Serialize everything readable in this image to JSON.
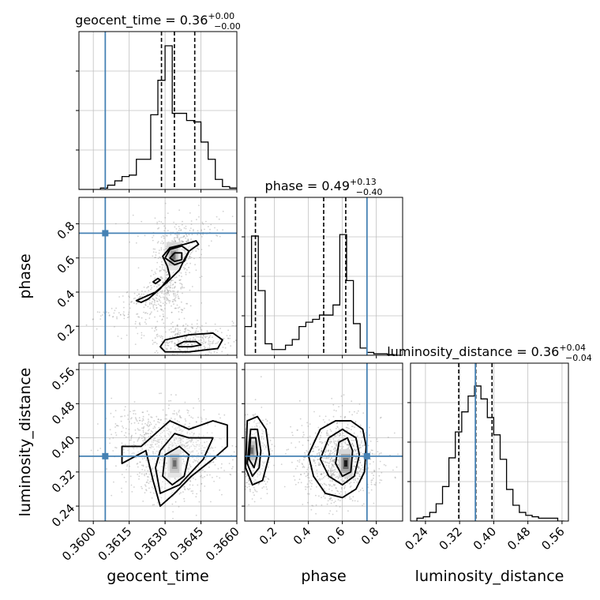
{
  "figure": {
    "colors": {
      "truth": "#4682b4",
      "hist": "#000000",
      "grid": "#c0c0c0",
      "scatter": "#9a9a9a"
    }
  },
  "chart_data": [
    {
      "panel": "geocent_time-hist",
      "type": "bar",
      "style": "step",
      "title_main": "geocent_time = 0.36",
      "title_sup": "+0.00",
      "title_sub": "−0.00",
      "xlim": [
        0.3594,
        0.366
      ],
      "ylim": [
        0,
        1
      ],
      "bins": [
        [
          0.3594,
          0
        ],
        [
          0.3597,
          0
        ],
        [
          0.36,
          0
        ],
        [
          0.3603,
          0.01
        ],
        [
          0.3606,
          0.03
        ],
        [
          0.3609,
          0.06
        ],
        [
          0.3612,
          0.09
        ],
        [
          0.3615,
          0.1
        ],
        [
          0.3618,
          0.21
        ],
        [
          0.3621,
          0.21
        ],
        [
          0.3624,
          0.52
        ],
        [
          0.3627,
          0.76
        ],
        [
          0.363,
          1.0
        ],
        [
          0.3633,
          0.53
        ],
        [
          0.3636,
          0.53
        ],
        [
          0.3639,
          0.48
        ],
        [
          0.3642,
          0.47
        ],
        [
          0.3645,
          0.33
        ],
        [
          0.3648,
          0.21
        ],
        [
          0.3651,
          0.07
        ],
        [
          0.3654,
          0.02
        ],
        [
          0.3657,
          0.01
        ]
      ],
      "quantiles": [
        0.36285,
        0.36339,
        0.36424
      ],
      "truth": 0.3605,
      "grid": true
    },
    {
      "panel": "phase-hist",
      "type": "bar",
      "style": "step",
      "title_main": "phase = 0.49",
      "title_sup": "+0.13",
      "title_sub": "−0.40",
      "xlim": [
        0.025,
        0.955
      ],
      "ylim": [
        0,
        1
      ],
      "bins": [
        [
          0.025,
          0.2
        ],
        [
          0.065,
          0.83
        ],
        [
          0.105,
          0.45
        ],
        [
          0.145,
          0.08
        ],
        [
          0.185,
          0.04
        ],
        [
          0.225,
          0.04
        ],
        [
          0.265,
          0.07
        ],
        [
          0.305,
          0.11
        ],
        [
          0.345,
          0.2
        ],
        [
          0.385,
          0.23
        ],
        [
          0.425,
          0.25
        ],
        [
          0.465,
          0.28
        ],
        [
          0.505,
          0.28
        ],
        [
          0.545,
          0.35
        ],
        [
          0.585,
          0.84
        ],
        [
          0.625,
          0.52
        ],
        [
          0.665,
          0.22
        ],
        [
          0.705,
          0.05
        ],
        [
          0.745,
          0.02
        ],
        [
          0.785,
          0.01
        ],
        [
          0.825,
          0.01
        ],
        [
          0.865,
          0.005
        ],
        [
          0.905,
          0
        ]
      ],
      "quantiles": [
        0.088,
        0.49,
        0.62
      ],
      "truth": 0.745,
      "grid": true
    },
    {
      "panel": "luminosity_distance-hist",
      "type": "bar",
      "style": "step",
      "title_main": "luminosity_distance = 0.36",
      "title_sup": "+0.04",
      "title_sub": "−0.04",
      "xlim": [
        0.205,
        0.575
      ],
      "ylim": [
        0,
        1
      ],
      "bins": [
        [
          0.205,
          0
        ],
        [
          0.22,
          0.02
        ],
        [
          0.235,
          0.03
        ],
        [
          0.25,
          0.06
        ],
        [
          0.265,
          0.12
        ],
        [
          0.28,
          0.24
        ],
        [
          0.295,
          0.44
        ],
        [
          0.31,
          0.62
        ],
        [
          0.325,
          0.76
        ],
        [
          0.34,
          0.87
        ],
        [
          0.355,
          0.94
        ],
        [
          0.37,
          0.85
        ],
        [
          0.385,
          0.72
        ],
        [
          0.4,
          0.6
        ],
        [
          0.415,
          0.43
        ],
        [
          0.43,
          0.22
        ],
        [
          0.445,
          0.11
        ],
        [
          0.46,
          0.06
        ],
        [
          0.475,
          0.04
        ],
        [
          0.49,
          0.03
        ],
        [
          0.505,
          0.02
        ],
        [
          0.52,
          0.02
        ],
        [
          0.535,
          0.02
        ],
        [
          0.55,
          0
        ]
      ],
      "quantiles": [
        0.318,
        0.358,
        0.396
      ],
      "truth": 0.357,
      "grid": true
    },
    {
      "panel": "geocent_time-vs-phase",
      "type": "scatter",
      "style": "2d-density-contour",
      "xlim": [
        0.3594,
        0.366
      ],
      "ylim": [
        0.03,
        0.955
      ],
      "yticks": [
        "0.2",
        "0.4",
        "0.6",
        "0.8"
      ],
      "ylabel": "phase",
      "truth": [
        0.3605,
        0.745
      ],
      "scatter_seeds": [
        {
          "x": 0.36357,
          "y": 0.66,
          "sx": 0.0004,
          "sy": 0.06,
          "n": 240
        },
        {
          "x": 0.36315,
          "y": 0.47,
          "sx": 0.00045,
          "sy": 0.09,
          "n": 200
        },
        {
          "x": 0.3625,
          "y": 0.36,
          "sx": 0.0007,
          "sy": 0.04,
          "n": 140
        },
        {
          "x": 0.364,
          "y": 0.12,
          "sx": 0.0009,
          "sy": 0.05,
          "n": 320
        },
        {
          "x": 0.3615,
          "y": 0.26,
          "sx": 0.001,
          "sy": 0.03,
          "n": 80
        },
        {
          "x": 0.3639,
          "y": 0.78,
          "sx": 0.0012,
          "sy": 0.06,
          "n": 90
        }
      ],
      "density_core": [
        [
          0.36335,
          0.61
        ]
      ],
      "contours": [
        [
          [
            0.3623,
            0.36
          ],
          [
            0.3628,
            0.42
          ],
          [
            0.3632,
            0.49
          ],
          [
            0.3631,
            0.55
          ],
          [
            0.3629,
            0.61
          ],
          [
            0.3632,
            0.66
          ],
          [
            0.3638,
            0.68
          ],
          [
            0.3643,
            0.7
          ],
          [
            0.3644,
            0.68
          ],
          [
            0.364,
            0.64
          ],
          [
            0.3638,
            0.59
          ],
          [
            0.3636,
            0.53
          ],
          [
            0.3631,
            0.46
          ],
          [
            0.3626,
            0.4
          ],
          [
            0.3618,
            0.35
          ],
          [
            0.362,
            0.34
          ],
          [
            0.3623,
            0.36
          ]
        ],
        [
          [
            0.363,
            0.6
          ],
          [
            0.3632,
            0.65
          ],
          [
            0.3637,
            0.67
          ],
          [
            0.364,
            0.64
          ],
          [
            0.3638,
            0.58
          ],
          [
            0.3634,
            0.56
          ],
          [
            0.363,
            0.6
          ]
        ],
        [
          [
            0.3632,
            0.6
          ],
          [
            0.3634,
            0.63
          ],
          [
            0.3637,
            0.63
          ],
          [
            0.3637,
            0.59
          ],
          [
            0.3634,
            0.58
          ],
          [
            0.3632,
            0.6
          ]
        ],
        [
          [
            0.3628,
            0.08
          ],
          [
            0.363,
            0.12
          ],
          [
            0.364,
            0.15
          ],
          [
            0.365,
            0.16
          ],
          [
            0.3654,
            0.12
          ],
          [
            0.3652,
            0.07
          ],
          [
            0.364,
            0.05
          ],
          [
            0.363,
            0.05
          ],
          [
            0.3628,
            0.08
          ]
        ],
        [
          [
            0.3635,
            0.09
          ],
          [
            0.3638,
            0.11
          ],
          [
            0.3643,
            0.11
          ],
          [
            0.3645,
            0.09
          ],
          [
            0.3641,
            0.08
          ],
          [
            0.3636,
            0.08
          ],
          [
            0.3635,
            0.09
          ]
        ],
        [
          [
            0.3625,
            0.46
          ],
          [
            0.3627,
            0.48
          ],
          [
            0.3628,
            0.47
          ],
          [
            0.3626,
            0.45
          ],
          [
            0.3625,
            0.46
          ]
        ]
      ]
    },
    {
      "panel": "geocent_time-vs-luminosity_distance",
      "type": "scatter",
      "style": "2d-density-contour",
      "xlim": [
        0.3594,
        0.366
      ],
      "ylim": [
        0.205,
        0.575
      ],
      "xticks": [
        "0.3600",
        "0.3615",
        "0.3630",
        "0.3645",
        "0.3660"
      ],
      "yticks": [
        "0.24",
        "0.32",
        "0.40",
        "0.48",
        "0.56"
      ],
      "xlabel": "geocent_time",
      "ylabel": "luminosity_distance",
      "truth": [
        0.3605,
        0.357
      ],
      "scatter_seeds": [
        {
          "x": 0.3634,
          "y": 0.36,
          "sx": 0.001,
          "sy": 0.05,
          "n": 950
        },
        {
          "x": 0.3617,
          "y": 0.42,
          "sx": 0.0006,
          "sy": 0.03,
          "n": 120
        }
      ],
      "density_core": [
        [
          0.3634,
          0.34
        ]
      ],
      "contours": [
        [
          [
            0.3622,
            0.37
          ],
          [
            0.3625,
            0.3
          ],
          [
            0.3628,
            0.24
          ],
          [
            0.3634,
            0.27
          ],
          [
            0.3641,
            0.31
          ],
          [
            0.365,
            0.35
          ],
          [
            0.3656,
            0.38
          ],
          [
            0.3656,
            0.43
          ],
          [
            0.365,
            0.44
          ],
          [
            0.364,
            0.42
          ],
          [
            0.3632,
            0.44
          ],
          [
            0.3628,
            0.42
          ],
          [
            0.362,
            0.38
          ],
          [
            0.3612,
            0.38
          ],
          [
            0.3612,
            0.34
          ],
          [
            0.3622,
            0.37
          ]
        ],
        [
          [
            0.3626,
            0.33
          ],
          [
            0.3628,
            0.27
          ],
          [
            0.3636,
            0.29
          ],
          [
            0.3646,
            0.35
          ],
          [
            0.365,
            0.4
          ],
          [
            0.364,
            0.4
          ],
          [
            0.3634,
            0.41
          ],
          [
            0.3628,
            0.37
          ],
          [
            0.3626,
            0.33
          ]
        ],
        [
          [
            0.3629,
            0.31
          ],
          [
            0.3633,
            0.29
          ],
          [
            0.3638,
            0.31
          ],
          [
            0.364,
            0.36
          ],
          [
            0.3636,
            0.38
          ],
          [
            0.363,
            0.36
          ],
          [
            0.3629,
            0.31
          ]
        ]
      ]
    },
    {
      "panel": "phase-vs-luminosity_distance",
      "type": "scatter",
      "style": "2d-density-contour",
      "xlim": [
        0.025,
        0.955
      ],
      "ylim": [
        0.205,
        0.575
      ],
      "xticks": [
        "0.2",
        "0.4",
        "0.6",
        "0.8"
      ],
      "xlabel": "phase",
      "truth": [
        0.745,
        0.357
      ],
      "scatter_seeds": [
        {
          "x": 0.08,
          "y": 0.36,
          "sx": 0.05,
          "sy": 0.05,
          "n": 420
        },
        {
          "x": 0.58,
          "y": 0.35,
          "sx": 0.12,
          "sy": 0.05,
          "n": 900
        }
      ],
      "density_core": [
        [
          0.065,
          0.37
        ],
        [
          0.62,
          0.34
        ]
      ],
      "contours": [
        [
          [
            0.03,
            0.33
          ],
          [
            0.07,
            0.29
          ],
          [
            0.13,
            0.3
          ],
          [
            0.17,
            0.36
          ],
          [
            0.15,
            0.42
          ],
          [
            0.1,
            0.45
          ],
          [
            0.04,
            0.44
          ],
          [
            0.03,
            0.33
          ]
        ],
        [
          [
            0.04,
            0.34
          ],
          [
            0.07,
            0.31
          ],
          [
            0.11,
            0.33
          ],
          [
            0.12,
            0.37
          ],
          [
            0.1,
            0.42
          ],
          [
            0.06,
            0.42
          ],
          [
            0.04,
            0.34
          ]
        ],
        [
          [
            0.05,
            0.35
          ],
          [
            0.08,
            0.33
          ],
          [
            0.1,
            0.36
          ],
          [
            0.09,
            0.4
          ],
          [
            0.06,
            0.4
          ],
          [
            0.05,
            0.35
          ]
        ],
        [
          [
            0.4,
            0.36
          ],
          [
            0.43,
            0.31
          ],
          [
            0.5,
            0.27
          ],
          [
            0.6,
            0.26
          ],
          [
            0.68,
            0.28
          ],
          [
            0.73,
            0.32
          ],
          [
            0.74,
            0.38
          ],
          [
            0.72,
            0.42
          ],
          [
            0.65,
            0.44
          ],
          [
            0.56,
            0.44
          ],
          [
            0.47,
            0.42
          ],
          [
            0.4,
            0.36
          ]
        ],
        [
          [
            0.47,
            0.35
          ],
          [
            0.52,
            0.31
          ],
          [
            0.6,
            0.29
          ],
          [
            0.67,
            0.31
          ],
          [
            0.7,
            0.36
          ],
          [
            0.68,
            0.4
          ],
          [
            0.6,
            0.42
          ],
          [
            0.52,
            0.4
          ],
          [
            0.47,
            0.35
          ]
        ],
        [
          [
            0.56,
            0.34
          ],
          [
            0.6,
            0.31
          ],
          [
            0.65,
            0.32
          ],
          [
            0.66,
            0.37
          ],
          [
            0.63,
            0.4
          ],
          [
            0.58,
            0.39
          ],
          [
            0.56,
            0.34
          ]
        ]
      ]
    }
  ]
}
